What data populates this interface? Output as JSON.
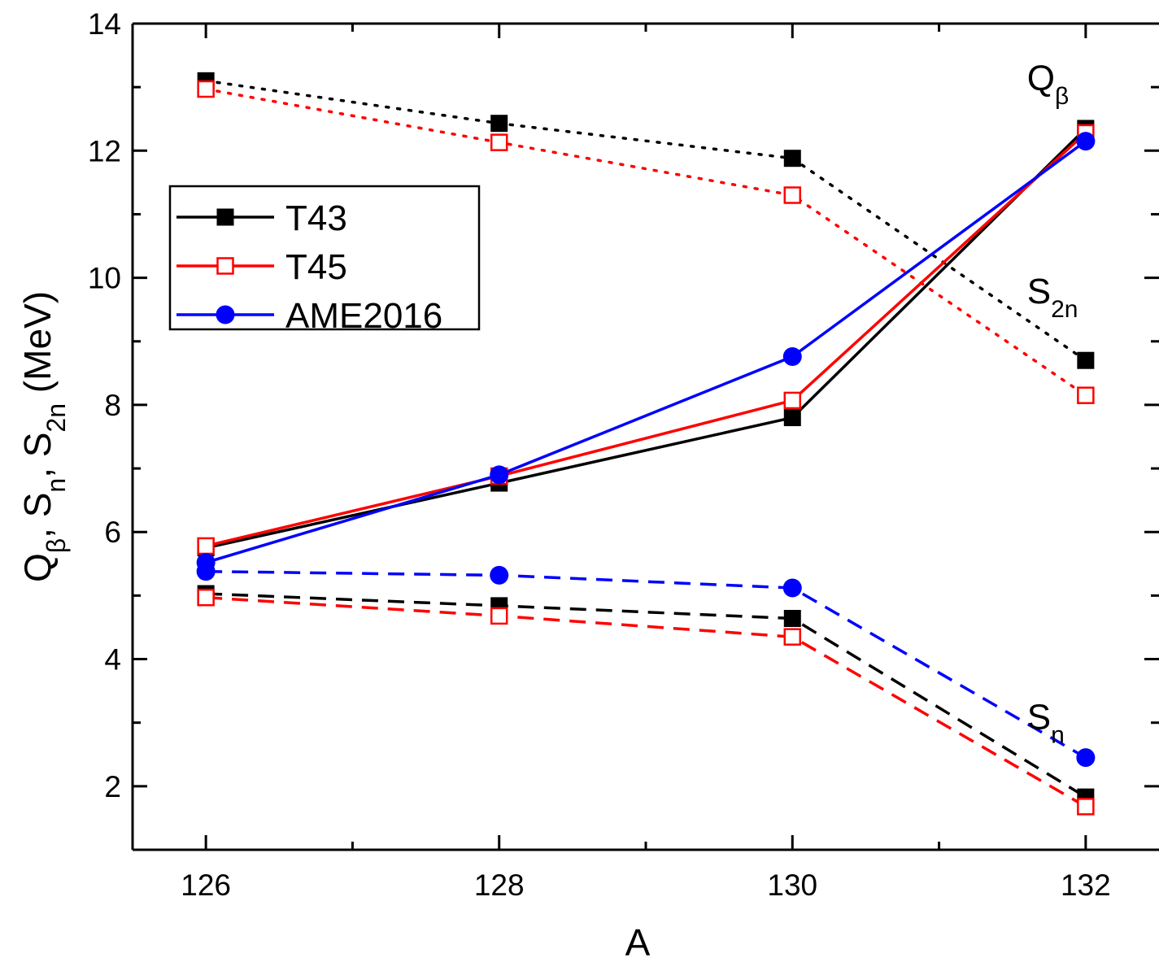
{
  "chart_data": {
    "type": "line",
    "xlabel": "A",
    "ylabel": {
      "parts": [
        {
          "text": "Q",
          "sub": "β"
        },
        {
          "text": ", S",
          "sub": "n"
        },
        {
          "text": ", S",
          "sub": "2n"
        },
        {
          "text": " (MeV)",
          "sub": ""
        }
      ]
    },
    "xlim": [
      125.5,
      132.5
    ],
    "ylim": [
      1,
      14
    ],
    "x_ticks": [
      126,
      128,
      130,
      132
    ],
    "y_ticks": [
      2,
      4,
      6,
      8,
      10,
      12,
      14
    ],
    "grid": false,
    "legend_placement": "upper-left",
    "legend": [
      {
        "name": "T43",
        "color": "#000000",
        "marker": "square-filled"
      },
      {
        "name": "T45",
        "color": "#ff0000",
        "marker": "square-open"
      },
      {
        "name": "AME2016",
        "color": "#0000ff",
        "marker": "circle-filled"
      }
    ],
    "annotations": [
      {
        "text": "Q",
        "sub": "β",
        "x": 131.6,
        "y": 12.95
      },
      {
        "text": "S",
        "sub": "2n",
        "x": 131.6,
        "y": 9.6
      },
      {
        "text": "S",
        "sub": "n",
        "x": 131.6,
        "y": 2.9
      }
    ],
    "series": [
      {
        "group": "Q_beta",
        "model": "T43",
        "color": "#000000",
        "line": "dotted",
        "marker": "square-filled",
        "x": [
          126,
          128,
          130,
          132
        ],
        "y": [
          13.1,
          12.43,
          11.88,
          8.7
        ]
      },
      {
        "group": "Q_beta",
        "model": "T45",
        "color": "#ff0000",
        "line": "dotted",
        "marker": "square-open",
        "x": [
          126,
          128,
          130,
          132
        ],
        "y": [
          12.97,
          12.13,
          11.3,
          8.15
        ]
      },
      {
        "group": "S2n",
        "model": "T43",
        "color": "#000000",
        "line": "solid",
        "marker": "square-filled",
        "x": [
          126,
          128,
          130,
          132
        ],
        "y": [
          5.75,
          6.77,
          7.8,
          12.35
        ]
      },
      {
        "group": "S2n",
        "model": "T45",
        "color": "#ff0000",
        "line": "solid",
        "marker": "square-open",
        "x": [
          126,
          128,
          130,
          132
        ],
        "y": [
          5.78,
          6.88,
          8.07,
          12.28
        ]
      },
      {
        "group": "S2n",
        "model": "AME2016",
        "color": "#0000ff",
        "line": "solid",
        "marker": "circle-filled",
        "x": [
          126,
          128,
          130,
          132
        ],
        "y": [
          5.52,
          6.9,
          8.76,
          12.15
        ]
      },
      {
        "group": "Sn",
        "model": "T43",
        "color": "#000000",
        "line": "dashed",
        "marker": "square-filled",
        "x": [
          126,
          128,
          130,
          132
        ],
        "y": [
          5.03,
          4.84,
          4.64,
          1.83
        ]
      },
      {
        "group": "Sn",
        "model": "T45",
        "color": "#ff0000",
        "line": "dashed",
        "marker": "square-open",
        "x": [
          126,
          128,
          130,
          132
        ],
        "y": [
          4.97,
          4.68,
          4.35,
          1.68
        ]
      },
      {
        "group": "Sn",
        "model": "AME2016",
        "color": "#0000ff",
        "line": "dashed",
        "marker": "circle-filled",
        "x": [
          126,
          128,
          130,
          132
        ],
        "y": [
          5.38,
          5.32,
          5.12,
          2.45
        ]
      }
    ]
  }
}
